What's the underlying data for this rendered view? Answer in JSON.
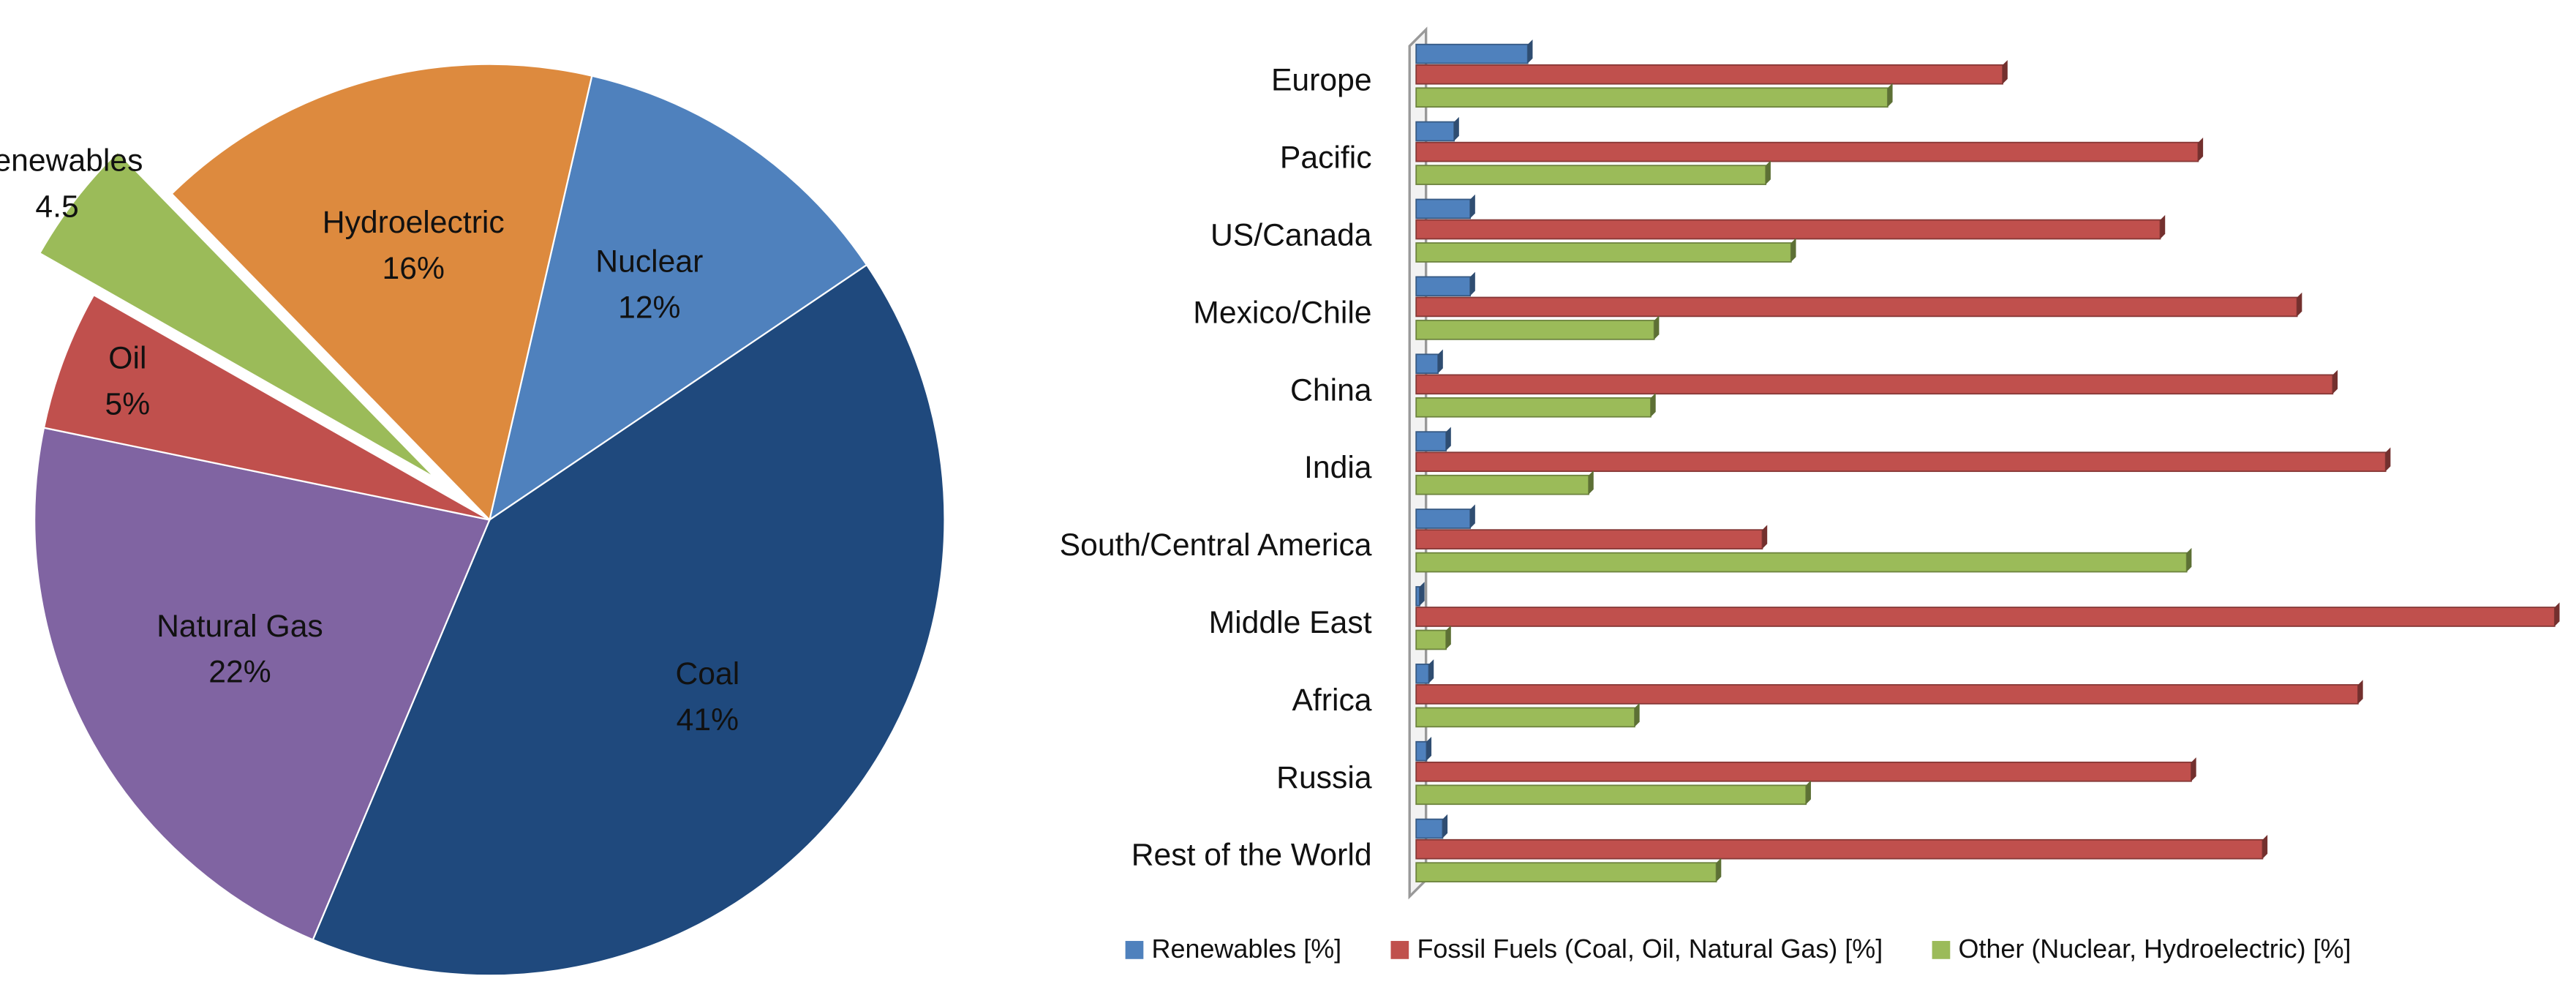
{
  "chart_data": [
    {
      "type": "pie",
      "categories": [
        "Nuclear",
        "Coal",
        "Natural Gas",
        "Oil",
        "Renewables",
        "Hydroelectric"
      ],
      "values": [
        12,
        41,
        22,
        5,
        4.5,
        16
      ],
      "value_labels": [
        "12%",
        "41%",
        "22%",
        "5%",
        "4.5",
        "16%"
      ],
      "colors": [
        "#4f81bd",
        "#1f497d",
        "#8064a2",
        "#c0504d",
        "#9bbb59",
        "#dd8a3e"
      ],
      "explode": [
        0,
        0,
        0,
        0,
        0.15,
        0
      ]
    },
    {
      "type": "hbar",
      "categories": [
        "Europe",
        "Pacific",
        "US/Canada",
        "Mexico/Chile",
        "China",
        "India",
        "South/Central America",
        "Middle East",
        "Africa",
        "Russia",
        "Rest of the World"
      ],
      "series": [
        {
          "name": "Renewables [%]",
          "color": "#4f81bd",
          "values": [
            9.7,
            3.3,
            4.7,
            4.7,
            1.9,
            2.6,
            4.7,
            0.3,
            1.1,
            0.9,
            2.3
          ]
        },
        {
          "name": "Fossil Fuels (Coal, Oil, Natural Gas) [%]",
          "color": "#c0504d",
          "values": [
            51,
            68,
            64.7,
            76.6,
            79.7,
            84.3,
            30.1,
            99,
            81.9,
            67.4,
            73.6
          ]
        },
        {
          "name": "Other (Nuclear, Hydroelectric) [%]",
          "color": "#9bbb59",
          "values": [
            41,
            30.4,
            32.6,
            20.7,
            20.4,
            15,
            67,
            2.6,
            19,
            33.9,
            26.1
          ]
        }
      ],
      "xlim": [
        0,
        100
      ],
      "legend": "bottom"
    }
  ]
}
